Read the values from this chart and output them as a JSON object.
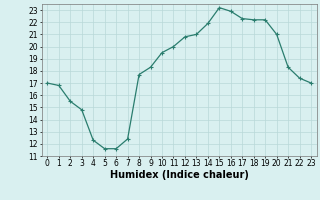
{
  "x": [
    0,
    1,
    2,
    3,
    4,
    5,
    6,
    7,
    8,
    9,
    10,
    11,
    12,
    13,
    14,
    15,
    16,
    17,
    18,
    19,
    20,
    21,
    22,
    23
  ],
  "y": [
    17,
    16.8,
    15.5,
    14.8,
    12.3,
    11.6,
    11.6,
    12.4,
    17.7,
    18.3,
    19.5,
    20.0,
    20.8,
    21.0,
    21.9,
    23.2,
    22.9,
    22.3,
    22.2,
    22.2,
    21.0,
    18.3,
    17.4,
    17.0
  ],
  "line_color": "#2a7d6e",
  "marker_color": "#2a7d6e",
  "bg_color": "#d9f0f0",
  "grid_color": "#b8d8d8",
  "xlabel": "Humidex (Indice chaleur)",
  "xlim": [
    -0.5,
    23.5
  ],
  "ylim": [
    11,
    23.5
  ],
  "yticks": [
    11,
    12,
    13,
    14,
    15,
    16,
    17,
    18,
    19,
    20,
    21,
    22,
    23
  ],
  "xticks": [
    0,
    1,
    2,
    3,
    4,
    5,
    6,
    7,
    8,
    9,
    10,
    11,
    12,
    13,
    14,
    15,
    16,
    17,
    18,
    19,
    20,
    21,
    22,
    23
  ],
  "tick_fontsize": 5.5,
  "xlabel_fontsize": 7.0,
  "marker_size": 2.5,
  "line_width": 0.9
}
